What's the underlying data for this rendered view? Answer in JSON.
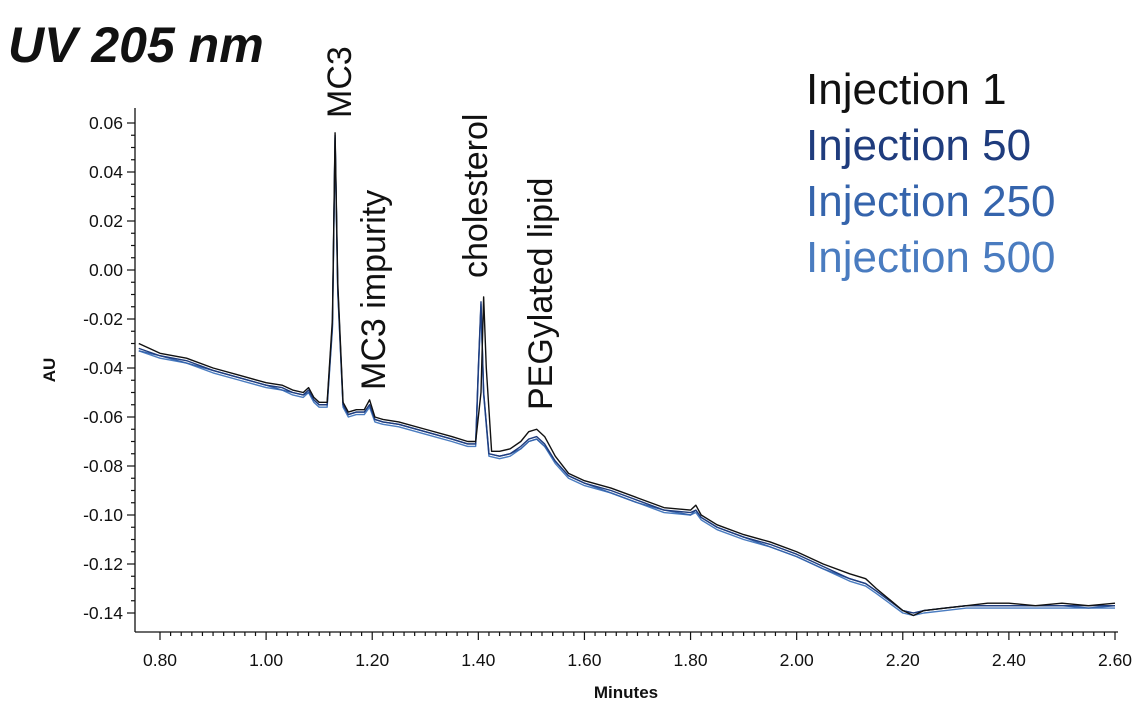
{
  "chart_data": {
    "type": "line",
    "title": "UV 205 nm",
    "xlabel": "Minutes",
    "ylabel": "AU",
    "xlim": [
      0.76,
      2.61
    ],
    "ylim": [
      -0.147,
      0.066
    ],
    "x_ticks": [
      0.8,
      1.0,
      1.2,
      1.4,
      1.6,
      1.8,
      2.0,
      2.2,
      2.4,
      2.6
    ],
    "x_tick_labels": [
      "0.80",
      "1.00",
      "1.20",
      "1.40",
      "1.60",
      "1.80",
      "2.00",
      "2.20",
      "2.40",
      "2.60"
    ],
    "y_ticks": [
      0.06,
      0.04,
      0.02,
      0.0,
      -0.02,
      -0.04,
      -0.06,
      -0.08,
      -0.1,
      -0.12,
      -0.14
    ],
    "y_tick_labels": [
      "0.06",
      "0.04",
      "0.02",
      "0.00",
      "-0.02",
      "-0.04",
      "-0.06",
      "-0.08",
      "-0.10",
      "-0.12",
      "-0.14"
    ],
    "grid": false,
    "legend_position": "top-right",
    "annotations": [
      {
        "text": "MC3",
        "x": 1.13,
        "y": 0.056
      },
      {
        "text": "MC3 impurity",
        "x": 1.19,
        "y": -0.053
      },
      {
        "text": "cholesterol",
        "x": 1.41,
        "y": -0.011
      },
      {
        "text": "PEGylated lipid",
        "x": 1.51,
        "y": -0.065
      }
    ],
    "series": [
      {
        "name": "Injection 1",
        "color": "#111111",
        "x": [
          0.76,
          0.8,
          0.85,
          0.9,
          0.95,
          1.0,
          1.03,
          1.05,
          1.07,
          1.08,
          1.09,
          1.1,
          1.115,
          1.125,
          1.13,
          1.135,
          1.145,
          1.155,
          1.17,
          1.185,
          1.195,
          1.205,
          1.22,
          1.25,
          1.3,
          1.35,
          1.38,
          1.395,
          1.405,
          1.41,
          1.415,
          1.425,
          1.44,
          1.46,
          1.48,
          1.495,
          1.51,
          1.525,
          1.545,
          1.57,
          1.6,
          1.65,
          1.7,
          1.75,
          1.8,
          1.81,
          1.82,
          1.85,
          1.9,
          1.95,
          2.0,
          2.05,
          2.1,
          2.13,
          2.15,
          2.2,
          2.22,
          2.24,
          2.28,
          2.32,
          2.36,
          2.4,
          2.45,
          2.5,
          2.55,
          2.6
        ],
        "y": [
          -0.03,
          -0.034,
          -0.036,
          -0.04,
          -0.043,
          -0.046,
          -0.047,
          -0.049,
          -0.05,
          -0.048,
          -0.052,
          -0.054,
          -0.054,
          -0.02,
          0.056,
          -0.005,
          -0.054,
          -0.058,
          -0.057,
          -0.057,
          -0.053,
          -0.06,
          -0.061,
          -0.062,
          -0.065,
          -0.068,
          -0.07,
          -0.07,
          -0.05,
          -0.011,
          -0.04,
          -0.074,
          -0.074,
          -0.073,
          -0.07,
          -0.066,
          -0.065,
          -0.068,
          -0.076,
          -0.083,
          -0.086,
          -0.089,
          -0.093,
          -0.097,
          -0.098,
          -0.096,
          -0.1,
          -0.104,
          -0.108,
          -0.111,
          -0.115,
          -0.12,
          -0.124,
          -0.126,
          -0.13,
          -0.139,
          -0.141,
          -0.139,
          -0.138,
          -0.137,
          -0.136,
          -0.136,
          -0.137,
          -0.136,
          -0.137,
          -0.136
        ]
      },
      {
        "name": "Injection 50",
        "color": "#1f3c7d",
        "x": [
          0.76,
          0.8,
          0.85,
          0.9,
          0.95,
          1.0,
          1.03,
          1.05,
          1.07,
          1.08,
          1.09,
          1.1,
          1.115,
          1.125,
          1.13,
          1.135,
          1.145,
          1.155,
          1.17,
          1.185,
          1.195,
          1.205,
          1.22,
          1.25,
          1.3,
          1.35,
          1.38,
          1.395,
          1.4,
          1.405,
          1.41,
          1.42,
          1.44,
          1.46,
          1.48,
          1.495,
          1.51,
          1.525,
          1.545,
          1.57,
          1.6,
          1.65,
          1.7,
          1.75,
          1.8,
          1.81,
          1.82,
          1.85,
          1.9,
          1.95,
          2.0,
          2.05,
          2.1,
          2.13,
          2.15,
          2.2,
          2.22,
          2.24,
          2.28,
          2.32,
          2.36,
          2.4,
          2.45,
          2.5,
          2.55,
          2.6
        ],
        "y": [
          -0.032,
          -0.035,
          -0.037,
          -0.041,
          -0.044,
          -0.047,
          -0.048,
          -0.05,
          -0.051,
          -0.049,
          -0.053,
          -0.055,
          -0.055,
          -0.022,
          0.055,
          -0.007,
          -0.055,
          -0.059,
          -0.058,
          -0.058,
          -0.055,
          -0.061,
          -0.062,
          -0.063,
          -0.066,
          -0.069,
          -0.071,
          -0.071,
          -0.04,
          -0.013,
          -0.05,
          -0.075,
          -0.076,
          -0.075,
          -0.072,
          -0.069,
          -0.068,
          -0.071,
          -0.078,
          -0.084,
          -0.087,
          -0.09,
          -0.094,
          -0.098,
          -0.099,
          -0.098,
          -0.101,
          -0.105,
          -0.109,
          -0.112,
          -0.116,
          -0.121,
          -0.126,
          -0.128,
          -0.131,
          -0.139,
          -0.14,
          -0.139,
          -0.138,
          -0.137,
          -0.137,
          -0.137,
          -0.137,
          -0.137,
          -0.137,
          -0.137
        ]
      },
      {
        "name": "Injection 250",
        "color": "#3564ac",
        "x": [
          0.76,
          0.8,
          0.85,
          0.9,
          0.95,
          1.0,
          1.03,
          1.05,
          1.07,
          1.08,
          1.09,
          1.1,
          1.115,
          1.125,
          1.13,
          1.135,
          1.145,
          1.155,
          1.17,
          1.185,
          1.195,
          1.205,
          1.22,
          1.25,
          1.3,
          1.35,
          1.38,
          1.395,
          1.4,
          1.405,
          1.41,
          1.42,
          1.44,
          1.46,
          1.48,
          1.495,
          1.51,
          1.525,
          1.545,
          1.57,
          1.6,
          1.65,
          1.7,
          1.75,
          1.8,
          1.81,
          1.82,
          1.85,
          1.9,
          1.95,
          2.0,
          2.05,
          2.1,
          2.13,
          2.15,
          2.2,
          2.22,
          2.24,
          2.28,
          2.32,
          2.36,
          2.4,
          2.45,
          2.5,
          2.55,
          2.6
        ],
        "y": [
          -0.033,
          -0.035,
          -0.038,
          -0.041,
          -0.044,
          -0.047,
          -0.049,
          -0.05,
          -0.051,
          -0.05,
          -0.053,
          -0.055,
          -0.055,
          -0.023,
          0.054,
          -0.008,
          -0.055,
          -0.059,
          -0.058,
          -0.058,
          -0.055,
          -0.061,
          -0.062,
          -0.063,
          -0.066,
          -0.069,
          -0.071,
          -0.071,
          -0.041,
          -0.014,
          -0.05,
          -0.075,
          -0.076,
          -0.075,
          -0.073,
          -0.07,
          -0.069,
          -0.072,
          -0.078,
          -0.084,
          -0.087,
          -0.091,
          -0.095,
          -0.098,
          -0.1,
          -0.098,
          -0.101,
          -0.105,
          -0.109,
          -0.113,
          -0.117,
          -0.122,
          -0.126,
          -0.128,
          -0.131,
          -0.139,
          -0.14,
          -0.139,
          -0.138,
          -0.137,
          -0.137,
          -0.137,
          -0.137,
          -0.137,
          -0.138,
          -0.137
        ]
      },
      {
        "name": "Injection 500",
        "color": "#4a7cc0",
        "x": [
          0.76,
          0.8,
          0.85,
          0.9,
          0.95,
          1.0,
          1.03,
          1.05,
          1.07,
          1.08,
          1.09,
          1.1,
          1.115,
          1.125,
          1.13,
          1.135,
          1.145,
          1.155,
          1.17,
          1.185,
          1.195,
          1.205,
          1.22,
          1.25,
          1.3,
          1.35,
          1.38,
          1.395,
          1.4,
          1.405,
          1.41,
          1.42,
          1.44,
          1.46,
          1.48,
          1.495,
          1.51,
          1.525,
          1.545,
          1.57,
          1.6,
          1.65,
          1.7,
          1.75,
          1.8,
          1.81,
          1.82,
          1.85,
          1.9,
          1.95,
          2.0,
          2.05,
          2.1,
          2.13,
          2.15,
          2.2,
          2.22,
          2.24,
          2.28,
          2.32,
          2.36,
          2.4,
          2.45,
          2.5,
          2.55,
          2.6
        ],
        "y": [
          -0.033,
          -0.036,
          -0.038,
          -0.042,
          -0.045,
          -0.048,
          -0.049,
          -0.051,
          -0.052,
          -0.05,
          -0.054,
          -0.056,
          -0.056,
          -0.024,
          0.053,
          -0.009,
          -0.056,
          -0.06,
          -0.059,
          -0.059,
          -0.056,
          -0.062,
          -0.063,
          -0.064,
          -0.067,
          -0.07,
          -0.072,
          -0.072,
          -0.042,
          -0.015,
          -0.051,
          -0.076,
          -0.077,
          -0.076,
          -0.073,
          -0.07,
          -0.069,
          -0.072,
          -0.079,
          -0.085,
          -0.088,
          -0.091,
          -0.095,
          -0.099,
          -0.1,
          -0.099,
          -0.102,
          -0.106,
          -0.11,
          -0.113,
          -0.117,
          -0.122,
          -0.127,
          -0.129,
          -0.132,
          -0.14,
          -0.141,
          -0.14,
          -0.139,
          -0.138,
          -0.138,
          -0.138,
          -0.138,
          -0.138,
          -0.138,
          -0.138
        ]
      }
    ]
  }
}
